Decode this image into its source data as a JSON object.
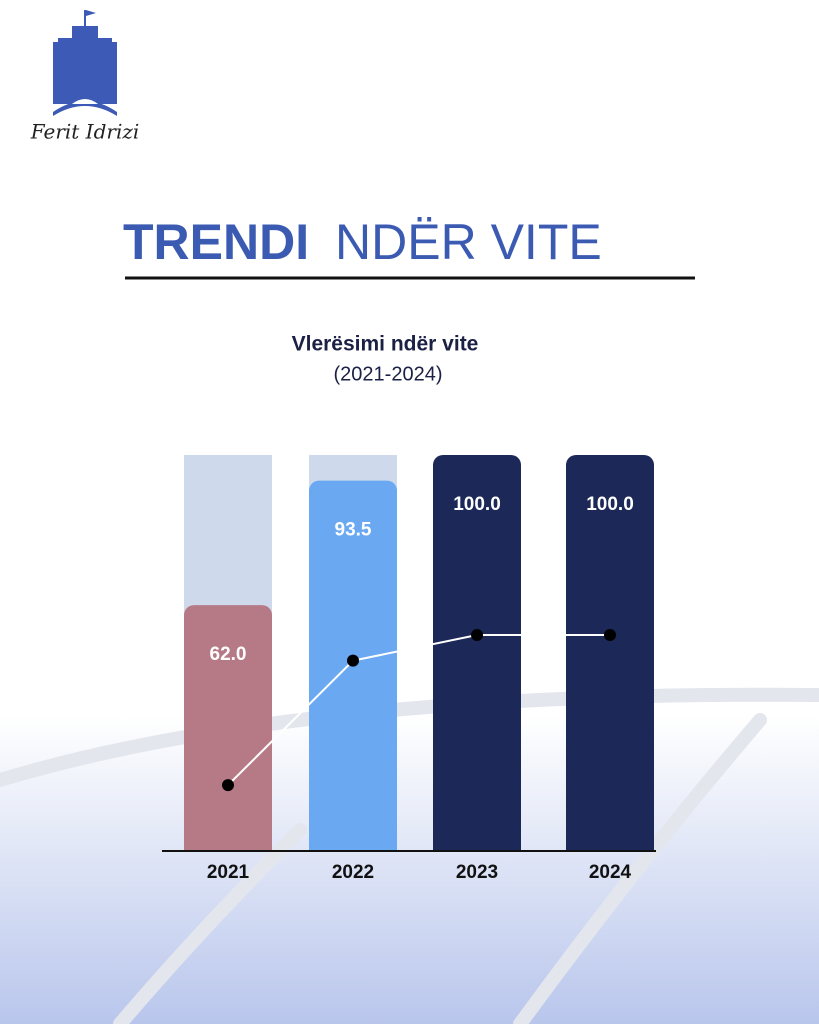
{
  "logo": {
    "text": "Ferit Idrizi"
  },
  "chart_data": {
    "type": "bar",
    "title": [
      "TRENDI",
      "NDËR VITE"
    ],
    "subtitle": [
      "Vlerësimi ndër vite",
      "(2021-2024)"
    ],
    "categories": [
      "2021",
      "2022",
      "2023",
      "2024"
    ],
    "values": [
      62,
      93.5,
      100,
      100
    ],
    "value_labels": [
      "62.0",
      "93.5",
      "100.0",
      "100.0"
    ],
    "colors": [
      "#b67a86",
      "#6aa9f1",
      "#1b2858",
      "#1b2858"
    ],
    "ylim": [
      0,
      100
    ],
    "trend_line": true
  }
}
